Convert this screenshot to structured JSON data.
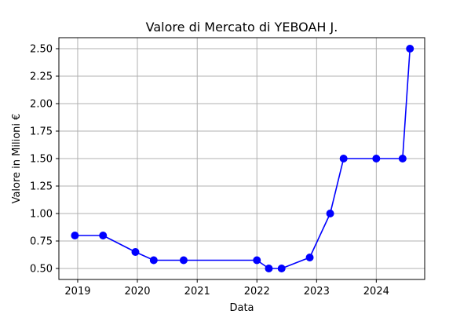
{
  "chart_data": {
    "type": "line",
    "title": "Valore di Mercato di YEBOAH J.",
    "xlabel": "Data",
    "ylabel": "Valore in Milioni €",
    "x_axis_type": "date",
    "xlim": [
      "2018-09-08",
      "2024-10-23"
    ],
    "ylim": [
      0.4,
      2.6
    ],
    "x_ticks": [
      {
        "label": "2019",
        "value": "2019-01-01"
      },
      {
        "label": "2020",
        "value": "2020-01-01"
      },
      {
        "label": "2021",
        "value": "2021-01-01"
      },
      {
        "label": "2022",
        "value": "2022-01-01"
      },
      {
        "label": "2023",
        "value": "2023-01-01"
      },
      {
        "label": "2024",
        "value": "2024-01-01"
      }
    ],
    "y_ticks": [
      {
        "label": "0.50",
        "value": 0.5
      },
      {
        "label": "0.75",
        "value": 0.75
      },
      {
        "label": "1.00",
        "value": 1.0
      },
      {
        "label": "1.25",
        "value": 1.25
      },
      {
        "label": "1.50",
        "value": 1.5
      },
      {
        "label": "1.75",
        "value": 1.75
      },
      {
        "label": "2.00",
        "value": 2.0
      },
      {
        "label": "2.25",
        "value": 2.25
      },
      {
        "label": "2.50",
        "value": 2.5
      }
    ],
    "grid": true,
    "series": [
      {
        "color": "#0000ff",
        "marker": "circle",
        "points": [
          {
            "x": "2018-12-15",
            "y": 0.8
          },
          {
            "x": "2019-06-05",
            "y": 0.8
          },
          {
            "x": "2019-12-20",
            "y": 0.65
          },
          {
            "x": "2020-04-10",
            "y": 0.575
          },
          {
            "x": "2020-10-10",
            "y": 0.575
          },
          {
            "x": "2022-01-01",
            "y": 0.575
          },
          {
            "x": "2022-03-15",
            "y": 0.5
          },
          {
            "x": "2022-06-01",
            "y": 0.5
          },
          {
            "x": "2022-11-20",
            "y": 0.6
          },
          {
            "x": "2023-03-25",
            "y": 1.0
          },
          {
            "x": "2023-06-15",
            "y": 1.5
          },
          {
            "x": "2024-01-01",
            "y": 1.5
          },
          {
            "x": "2024-06-10",
            "y": 1.5
          },
          {
            "x": "2024-07-25",
            "y": 2.5
          }
        ]
      }
    ]
  }
}
